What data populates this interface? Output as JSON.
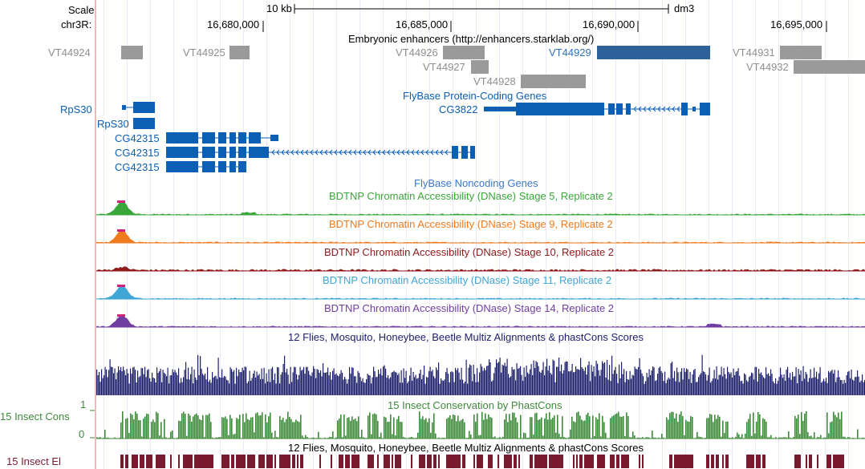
{
  "ruler": {
    "scale_label": "Scale",
    "scale_bar_text": "10 kb",
    "assembly": "dm3",
    "chrom_label": "chr3R:",
    "positions": [
      "16,680,000",
      "16,685,000",
      "16,690,000",
      "16,695,000"
    ]
  },
  "enhancers": {
    "title": "Embryonic enhancers (http://enhancers.starklab.org/)",
    "items": [
      {
        "label": "VT44924",
        "color": "#9a9a9a"
      },
      {
        "label": "VT44925",
        "color": "#9a9a9a"
      },
      {
        "label": "VT44926",
        "color": "#9a9a9a"
      },
      {
        "label": "VT44927",
        "color": "#9a9a9a"
      },
      {
        "label": "VT44928",
        "color": "#9a9a9a"
      },
      {
        "label": "VT44929",
        "color": "#2e6199",
        "label_color": "#2e6fb5"
      },
      {
        "label": "VT44931",
        "color": "#9a9a9a"
      },
      {
        "label": "VT44932",
        "color": "#9a9a9a"
      }
    ]
  },
  "genes": {
    "title": "FlyBase Protein-Coding Genes",
    "labels": [
      "RpS30",
      "RpS30",
      "CG42315",
      "CG42315",
      "CG42315",
      "CG3822"
    ],
    "color": "#0b5fb5"
  },
  "noncoding": {
    "title": "FlyBase Noncoding Genes"
  },
  "dnase": [
    {
      "title": "BDTNP Chromatin Accessibility (DNase) Stage 5, Replicate 2",
      "color": "#3aa63a"
    },
    {
      "title": "BDTNP Chromatin Accessibility (DNase) Stage 9, Replicate 2",
      "color": "#f07b1e"
    },
    {
      "title": "BDTNP Chromatin Accessibility (DNase) Stage 10, Replicate 2",
      "color": "#8e1a1a"
    },
    {
      "title": "BDTNP Chromatin Accessibility (DNase) Stage 11, Replicate 2",
      "color": "#3fa6d6"
    },
    {
      "title": "BDTNP Chromatin Accessibility (DNase) Stage 14, Replicate 2",
      "color": "#6f3ea0"
    }
  ],
  "multiz": {
    "title": "12 Flies, Mosquito, Honeybee, Beetle Multiz Alignments & phastCons Scores",
    "color": "#1c1f6b"
  },
  "phastcons": {
    "title": "15 Insect Conservation by PhastCons",
    "left_label": "15 Insect Cons",
    "y_max": "1",
    "y_min": "0",
    "color": "#3f8a3a"
  },
  "elements": {
    "title": "12 Flies, Mosquito, Honeybee, Beetle Multiz Alignments & phastCons Scores",
    "left_label": "15 Insect El",
    "color": "#7a1a2e"
  }
}
